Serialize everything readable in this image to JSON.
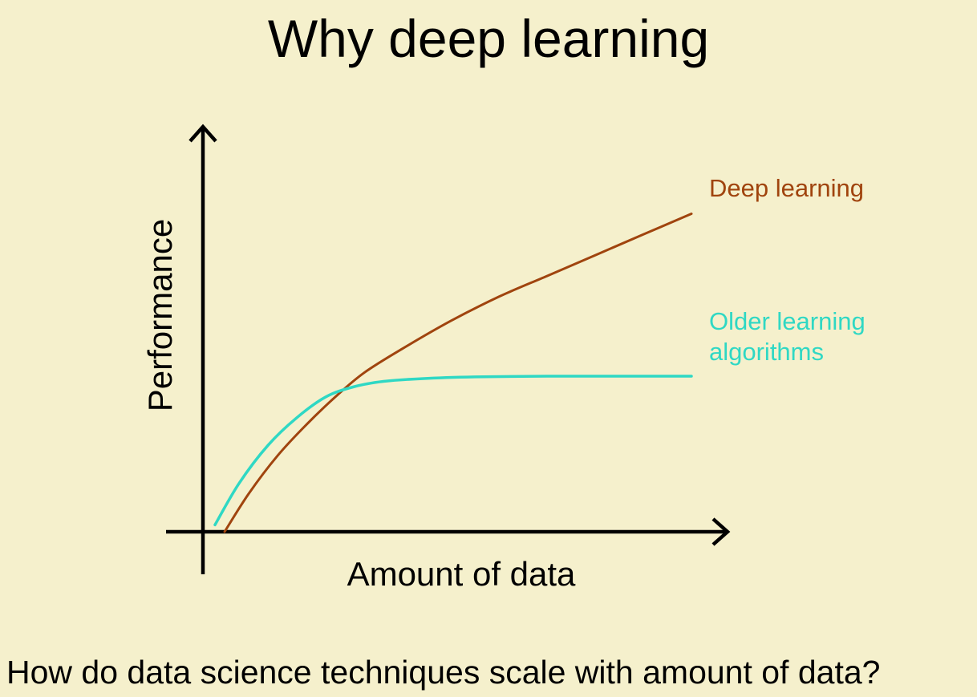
{
  "slide": {
    "background": "#f5f0cc",
    "title": "Why deep learning",
    "caption": "How do data science techniques scale with amount of data?"
  },
  "chart_data": {
    "type": "line",
    "xlabel": "Amount of data",
    "ylabel": "Performance",
    "xlim": [
      0,
      100
    ],
    "ylim": [
      0,
      100
    ],
    "tick_labels": "none",
    "grid": false,
    "legend": "inline labels at right end of each line",
    "series": [
      {
        "name": "Deep learning",
        "color": "#a0440e",
        "label_lines": [
          "Deep learning"
        ],
        "x": [
          3,
          8,
          14,
          20,
          26,
          32,
          40,
          50,
          60,
          70,
          80,
          90,
          100
        ],
        "y": [
          0,
          11,
          22,
          31,
          39,
          46,
          53,
          61,
          68,
          74,
          80,
          86,
          92
        ]
      },
      {
        "name": "Older learning algorithms",
        "color": "#2fd8c4",
        "label_lines": [
          "Older learning",
          "algorithms"
        ],
        "x": [
          1,
          6,
          12,
          18,
          24,
          30,
          36,
          44,
          55,
          70,
          85,
          100
        ],
        "y": [
          2,
          14,
          25,
          33,
          39,
          42,
          43.5,
          44.3,
          44.8,
          45,
          45,
          45
        ]
      }
    ]
  }
}
